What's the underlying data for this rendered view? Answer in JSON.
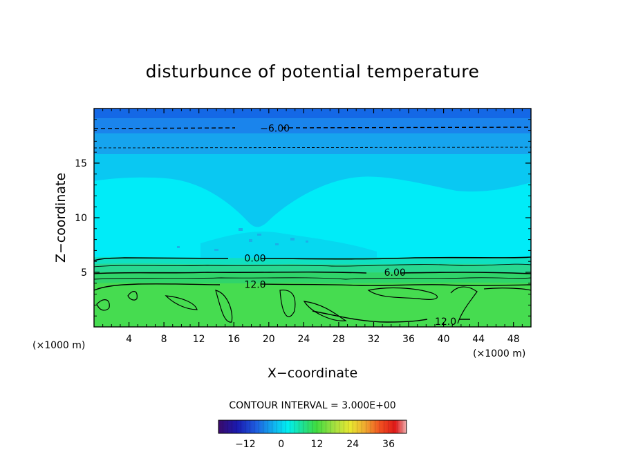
{
  "chart_data": {
    "type": "heatmap",
    "title": "disturbunce of potential temperature",
    "xlabel": "X−coordinate",
    "ylabel": "Z−coordinate",
    "x_unit_left": "(×1000 m)",
    "x_unit_right": "(×1000 m)",
    "xlim": [
      0,
      50
    ],
    "ylim": [
      0,
      20
    ],
    "x_ticks": [
      4,
      8,
      12,
      16,
      20,
      24,
      28,
      32,
      36,
      40,
      44,
      48
    ],
    "x_tick_labels": [
      "4",
      "8",
      "12",
      "16",
      "20",
      "24",
      "28",
      "32",
      "36",
      "40",
      "44",
      "48"
    ],
    "y_ticks": [
      5,
      10,
      15
    ],
    "y_tick_labels": [
      "5",
      "10",
      "15"
    ],
    "contour_labels": [
      {
        "text": "−6.00",
        "x": 19,
        "y": 18.2
      },
      {
        "text": "0.00",
        "x": 17.2,
        "y": 6.3
      },
      {
        "text": "6.00",
        "x": 33.2,
        "y": 5.0
      },
      {
        "text": "12.0",
        "x": 17.2,
        "y": 3.9
      },
      {
        "text": "12.0",
        "x": 39,
        "y": 0.5
      }
    ],
    "contour_interval_text": "CONTOUR INTERVAL = 3.000E+00",
    "colorbar": {
      "min": -21,
      "max": 42,
      "tick_values": [
        -12,
        0,
        12,
        24,
        36
      ],
      "tick_labels": [
        "−12",
        "0",
        "12",
        "24",
        "36"
      ]
    },
    "grid": false,
    "legend": "none"
  }
}
